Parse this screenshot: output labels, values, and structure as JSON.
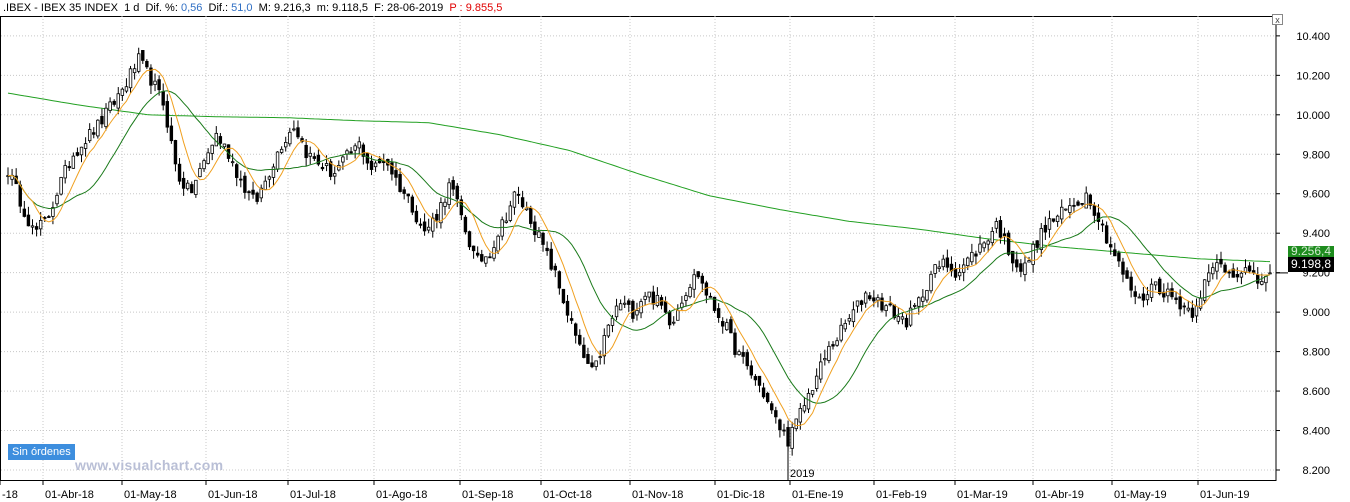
{
  "info_bar": {
    "symbol": ".IBEX - IBEX 35 INDEX",
    "timeframe": "1 d",
    "dif_pct_label": "Dif. %:",
    "dif_pct_value": "0,56",
    "dif_label": "Dif.:",
    "dif_value": "51,0",
    "max_label": "M:",
    "max_value": "9.216,3",
    "min_label": "m:",
    "min_value": "9.118,5",
    "date_label": "F:",
    "date_value": "28-06-2019",
    "p_label": "P :",
    "p_value": "9.855,5"
  },
  "badges": {
    "sin_ordenes": "Sin órdenes",
    "watermark": "www.visualchart.com",
    "close_label": "9.198,8",
    "green_label": "9.256,4",
    "close_button": "x"
  },
  "colors": {
    "candles": "#000000",
    "ma_short": "#f0a020",
    "ma_mid": "#1a7a1a",
    "ma_long": "#22a022",
    "grid": "#c8c8c8",
    "text_blue": "#2f6fc4",
    "text_red": "#e00000"
  },
  "chart_data": {
    "type": "candlestick",
    "ylim": [
      8200,
      10450
    ],
    "y_ticks": [
      "8.200",
      "8.400",
      "8.600",
      "8.800",
      "9.000",
      "9.200",
      "9.400",
      "9.600",
      "9.800",
      "10.000",
      "10.200",
      "10.400"
    ],
    "x_tick_labels": [
      "-18",
      "01-Abr-18",
      "01-May-18",
      "01-Jun-18",
      "01-Jul-18",
      "01-Ago-18",
      "01-Sep-18",
      "01-Oct-18",
      "01-Nov-18",
      "01-Dic-18",
      "01-Ene-19",
      "01-Feb-19",
      "01-Mar-19",
      "01-Abr-19",
      "01-May-19",
      "01-Jun-19"
    ],
    "year_marker": "2019",
    "last_close": 9198.8,
    "moving_average_long_last": 9256.4,
    "price_path": [
      9720,
      9560,
      9400,
      9470,
      9650,
      9800,
      9880,
      9950,
      10050,
      10150,
      10280,
      10180,
      10050,
      9700,
      9600,
      9750,
      9900,
      9800,
      9650,
      9550,
      9700,
      9850,
      9950,
      9800,
      9750,
      9700,
      9780,
      9850,
      9720,
      9780,
      9650,
      9550,
      9400,
      9500,
      9650,
      9450,
      9250,
      9300,
      9450,
      9600,
      9500,
      9350,
      9200,
      9000,
      8800,
      8680,
      8900,
      9050,
      9000,
      9100,
      9050,
      8950,
      9100,
      9200,
      9050,
      8950,
      8800,
      8700,
      8600,
      8450,
      8350,
      8500,
      8650,
      8800,
      8900,
      9000,
      9100,
      9050,
      9000,
      8950,
      9050,
      9200,
      9250,
      9200,
      9280,
      9350,
      9450,
      9300,
      9200,
      9350,
      9450,
      9500,
      9550,
      9600,
      9450,
      9300,
      9150,
      9050,
      9150,
      9100,
      9050,
      9000,
      9150,
      9250,
      9200,
      9220,
      9150,
      9200
    ],
    "moving_average_long_path": [
      10110,
      10050,
      10000,
      9990,
      9985,
      9970,
      9960,
      9900,
      9820,
      9700,
      9590,
      9520,
      9460,
      9420,
      9370,
      9330,
      9300,
      9270,
      9256
    ]
  }
}
